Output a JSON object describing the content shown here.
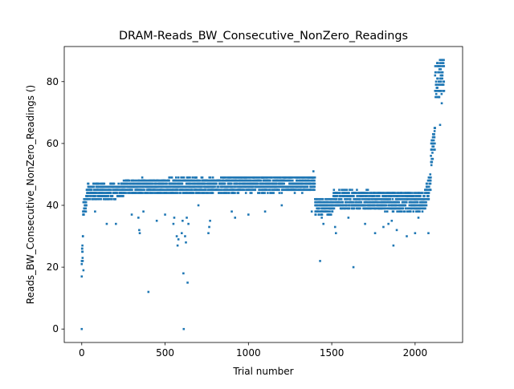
{
  "chart_data": {
    "type": "scatter",
    "title": "DRAM-Reads_BW_Consecutive_NonZero_Readings",
    "xlabel": "Trial number",
    "ylabel": "Reads_BW_Consecutive_NonZero_Readings ()",
    "xlim": [
      -105,
      2285
    ],
    "ylim": [
      -4.35,
      91.35
    ],
    "xticks": [
      0,
      500,
      1000,
      1500,
      2000
    ],
    "xtick_labels": [
      "0",
      "500",
      "1000",
      "1500",
      "2000"
    ],
    "yticks": [
      0,
      20,
      40,
      60,
      80
    ],
    "ytick_labels": [
      "0",
      "20",
      "40",
      "60",
      "80"
    ],
    "grid": false,
    "legend": "none",
    "marker_color": "#1f77b4",
    "series": [
      {
        "segments": [
          {
            "x0": 0,
            "x1": 8,
            "base": 19,
            "spread": 12,
            "drift": 8
          },
          {
            "x0": 8,
            "x1": 30,
            "base": 38,
            "spread": 6,
            "drift": 4
          },
          {
            "x0": 30,
            "x1": 250,
            "base": 44.5,
            "spread": 5,
            "drift": 0
          },
          {
            "x0": 250,
            "x1": 1400,
            "base": 46,
            "spread": 5,
            "drift": 1
          },
          {
            "x0": 1400,
            "x1": 1510,
            "base": 39.5,
            "spread": 5,
            "drift": 0
          },
          {
            "x0": 1510,
            "x1": 2060,
            "base": 42,
            "spread": 6,
            "drift": -1
          },
          {
            "x0": 2060,
            "x1": 2095,
            "base": 42,
            "spread": 7,
            "drift": 6
          },
          {
            "x0": 2095,
            "x1": 2120,
            "base": 56,
            "spread": 8,
            "drift": 6
          },
          {
            "x0": 2120,
            "x1": 2175,
            "base": 80,
            "spread": 12,
            "drift": 2
          }
        ],
        "outliers": [
          {
            "x": 0,
            "y": 0
          },
          {
            "x": 5,
            "y": 23
          },
          {
            "x": 10,
            "y": 19
          },
          {
            "x": 28,
            "y": 40
          },
          {
            "x": 80,
            "y": 38
          },
          {
            "x": 150,
            "y": 34
          },
          {
            "x": 205,
            "y": 34
          },
          {
            "x": 300,
            "y": 37
          },
          {
            "x": 340,
            "y": 36
          },
          {
            "x": 345,
            "y": 32
          },
          {
            "x": 348,
            "y": 31
          },
          {
            "x": 370,
            "y": 38
          },
          {
            "x": 400,
            "y": 12
          },
          {
            "x": 450,
            "y": 35
          },
          {
            "x": 500,
            "y": 37
          },
          {
            "x": 550,
            "y": 34
          },
          {
            "x": 555,
            "y": 36
          },
          {
            "x": 570,
            "y": 30
          },
          {
            "x": 575,
            "y": 27
          },
          {
            "x": 580,
            "y": 29
          },
          {
            "x": 600,
            "y": 31
          },
          {
            "x": 605,
            "y": 35
          },
          {
            "x": 610,
            "y": 18
          },
          {
            "x": 612,
            "y": 0
          },
          {
            "x": 620,
            "y": 30
          },
          {
            "x": 625,
            "y": 28
          },
          {
            "x": 630,
            "y": 36
          },
          {
            "x": 635,
            "y": 15
          },
          {
            "x": 640,
            "y": 34
          },
          {
            "x": 700,
            "y": 40
          },
          {
            "x": 760,
            "y": 31
          },
          {
            "x": 765,
            "y": 33
          },
          {
            "x": 770,
            "y": 35
          },
          {
            "x": 900,
            "y": 38
          },
          {
            "x": 920,
            "y": 36
          },
          {
            "x": 1000,
            "y": 37
          },
          {
            "x": 1100,
            "y": 38
          },
          {
            "x": 1200,
            "y": 40
          },
          {
            "x": 1380,
            "y": 38
          },
          {
            "x": 1390,
            "y": 51
          },
          {
            "x": 1430,
            "y": 22
          },
          {
            "x": 1440,
            "y": 36
          },
          {
            "x": 1450,
            "y": 34
          },
          {
            "x": 1520,
            "y": 33
          },
          {
            "x": 1525,
            "y": 31
          },
          {
            "x": 1600,
            "y": 36
          },
          {
            "x": 1630,
            "y": 20
          },
          {
            "x": 1700,
            "y": 34
          },
          {
            "x": 1760,
            "y": 31
          },
          {
            "x": 1810,
            "y": 33
          },
          {
            "x": 1840,
            "y": 34
          },
          {
            "x": 1860,
            "y": 35
          },
          {
            "x": 1870,
            "y": 27
          },
          {
            "x": 1890,
            "y": 32
          },
          {
            "x": 1950,
            "y": 30
          },
          {
            "x": 2000,
            "y": 31
          },
          {
            "x": 2020,
            "y": 36
          },
          {
            "x": 2080,
            "y": 31
          },
          {
            "x": 2150,
            "y": 66
          },
          {
            "x": 2140,
            "y": 75
          },
          {
            "x": 2160,
            "y": 73
          }
        ]
      }
    ]
  }
}
